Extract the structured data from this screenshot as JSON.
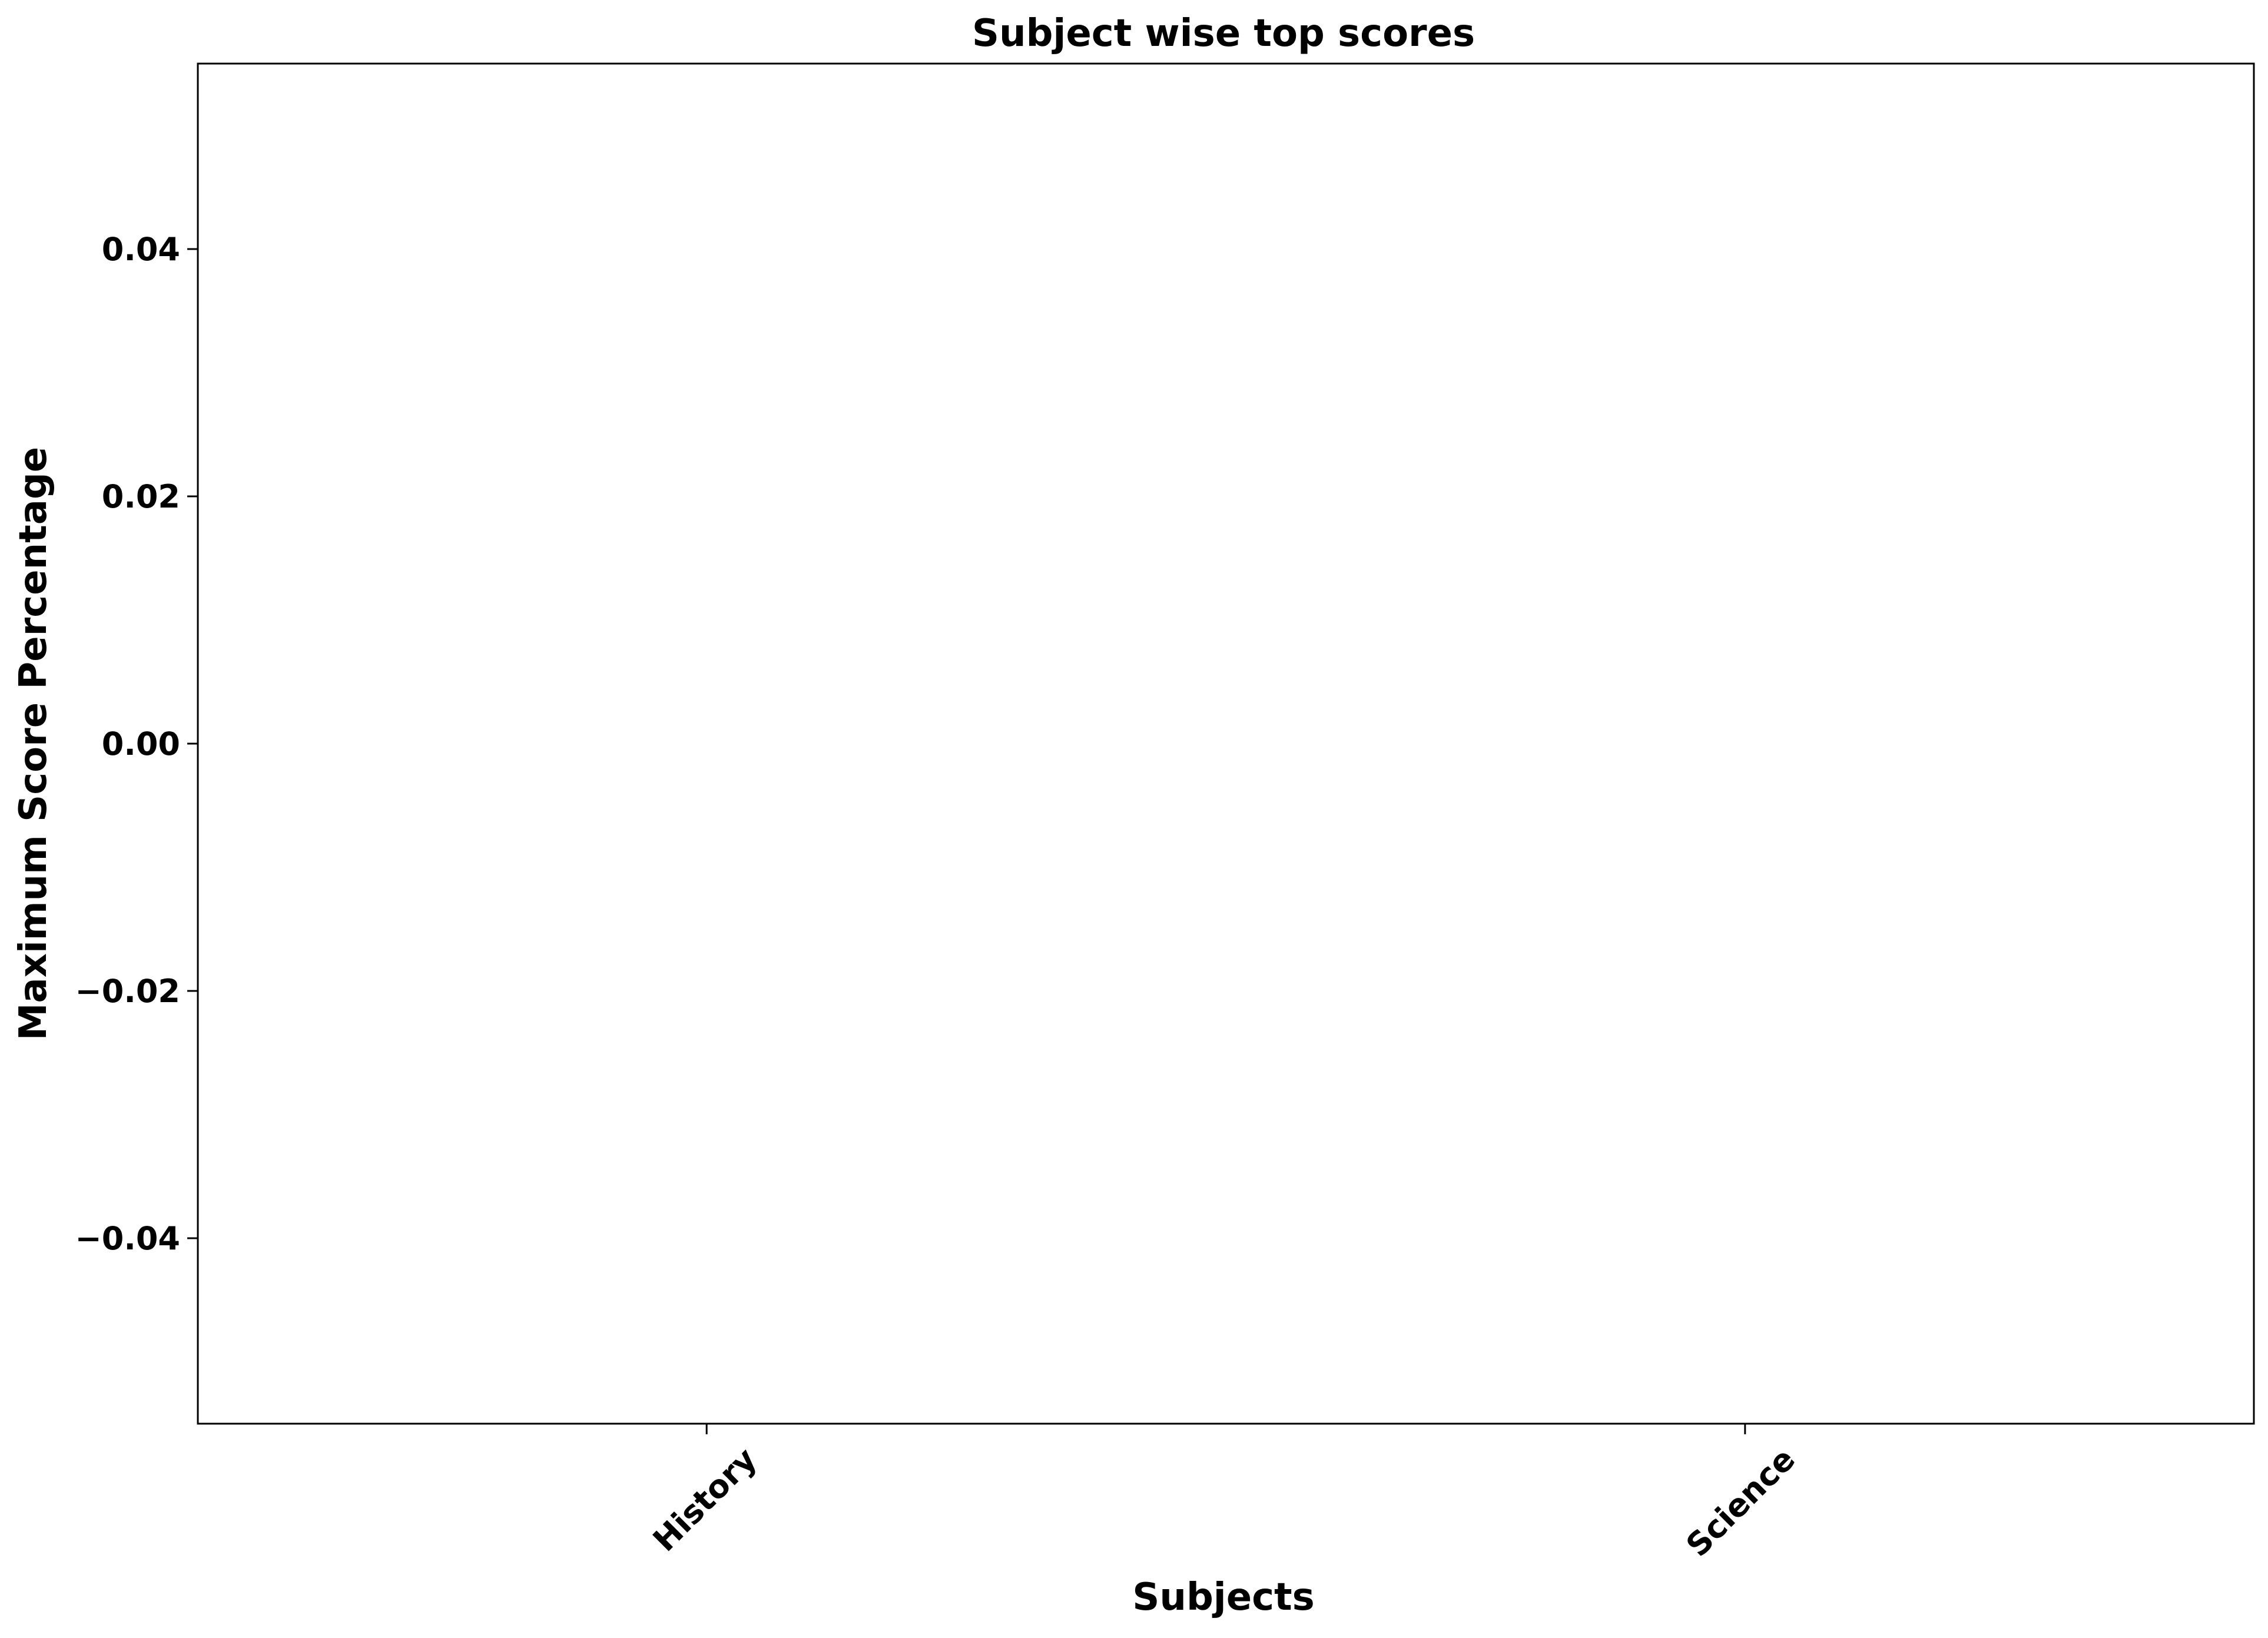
{
  "chart_data": {
    "type": "bar",
    "title": "Subject wise top scores",
    "xlabel": "Subjects",
    "ylabel": "Maximum Score Percentage",
    "categories": [
      "History",
      "Science"
    ],
    "values": [
      0,
      0
    ],
    "ylim": [
      -0.055,
      0.055
    ],
    "yticks": [
      -0.04,
      -0.02,
      0.0,
      0.02,
      0.04
    ],
    "ytick_labels": [
      "−0.04",
      "−0.02",
      "0.00",
      "0.02",
      "0.04"
    ],
    "xtick_rotation_deg": 45,
    "grid": false,
    "legend": null
  }
}
